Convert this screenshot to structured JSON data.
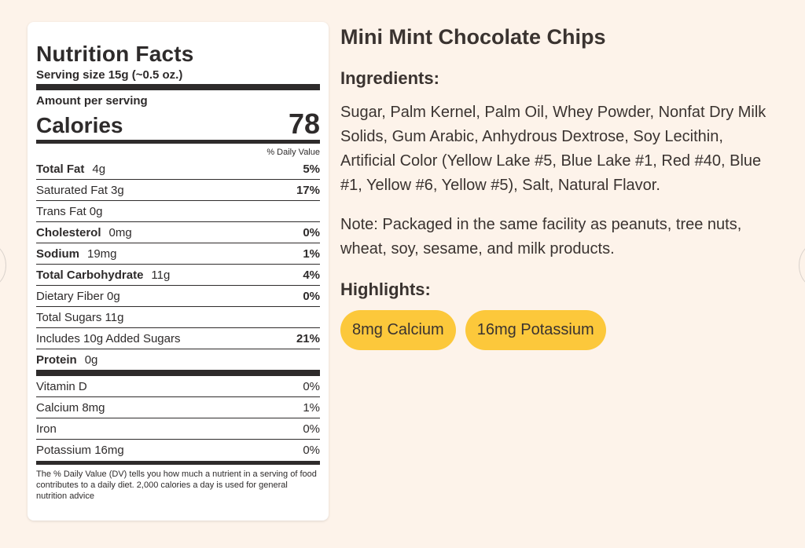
{
  "nutrition": {
    "title": "Nutrition Facts",
    "serving": "Serving size 15g (~0.5 oz.)",
    "amount_per_serving": "Amount per serving",
    "calories_label": "Calories",
    "calories_value": "78",
    "dv_header": "% Daily Value",
    "rows": [
      {
        "name": "Total Fat",
        "amount": "4g",
        "pct": "5%",
        "bold": true
      },
      {
        "name": "Saturated Fat 3g",
        "amount": "",
        "pct": "17%",
        "bold": false
      },
      {
        "name": "Trans Fat 0g",
        "amount": "",
        "pct": "",
        "bold": false
      },
      {
        "name": "Cholesterol",
        "amount": "0mg",
        "pct": "0%",
        "bold": true
      },
      {
        "name": "Sodium",
        "amount": "19mg",
        "pct": "1%",
        "bold": true
      },
      {
        "name": "Total Carbohydrate",
        "amount": "11g",
        "pct": "4%",
        "bold": true
      },
      {
        "name": "Dietary Fiber 0g",
        "amount": "",
        "pct": "0%",
        "bold": false
      },
      {
        "name": "Total Sugars 11g",
        "amount": "",
        "pct": "",
        "bold": false
      },
      {
        "name": "Includes 10g Added Sugars",
        "amount": "",
        "pct": "21%",
        "bold": false
      },
      {
        "name": "Protein",
        "amount": "0g",
        "pct": "",
        "bold": true
      }
    ],
    "vitamins": [
      {
        "name": "Vitamin D",
        "pct": "0%"
      },
      {
        "name": "Calcium 8mg",
        "pct": "1%"
      },
      {
        "name": "Iron",
        "pct": "0%"
      },
      {
        "name": "Potassium 16mg",
        "pct": "0%"
      }
    ],
    "footnote": "The % Daily Value (DV) tells you how much a nutrient in a serving of food contributes to a daily diet. 2,000 calories a day is used for general nutrition advice"
  },
  "product": {
    "title": "Mini Mint Chocolate Chips",
    "ingredients_heading": "Ingredients:",
    "ingredients_text": "Sugar, Palm Kernel, Palm Oil, Whey Powder, Nonfat Dry Milk Solids, Gum Arabic, Anhydrous Dextrose, Soy Lecithin, Artificial Color (Yellow Lake #5, Blue Lake #1, Red #40, Blue #1, Yellow #6, Yellow #5), Salt, Natural Flavor.",
    "note_text": "Note: Packaged in the same facility as peanuts, tree nuts, wheat, soy, sesame, and milk products.",
    "highlights_heading": "Highlights:",
    "highlights": [
      "8mg Calcium",
      "16mg Potassium"
    ]
  },
  "colors": {
    "background": "#fdf3ea",
    "text": "#2e2b2b",
    "pill": "#fcc83b"
  }
}
